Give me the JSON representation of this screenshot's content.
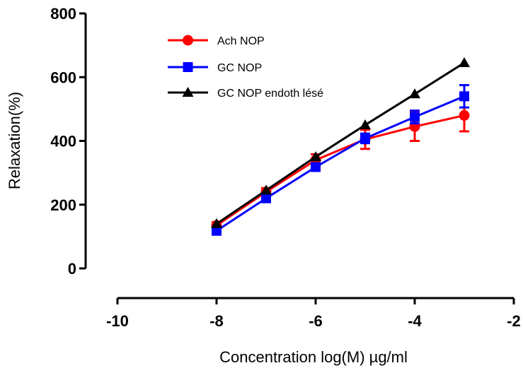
{
  "chart_data": {
    "type": "line",
    "title": "",
    "xlabel": "Concentration log(M) µg/ml",
    "ylabel": "Relaxation(%)",
    "xlim": [
      -10,
      -2
    ],
    "ylim": [
      0,
      800
    ],
    "xticks": [
      -10,
      -8,
      -6,
      -4,
      -2
    ],
    "yticks": [
      0,
      200,
      400,
      600,
      800
    ],
    "grid": false,
    "legend_position": "top-left",
    "series": [
      {
        "name": "Ach NOP",
        "color": "#ff0000",
        "marker": "circle",
        "x": [
          -8,
          -7,
          -6,
          -5,
          -4,
          -3
        ],
        "y": [
          135,
          240,
          340,
          405,
          445,
          480
        ],
        "err": [
          10,
          12,
          18,
          30,
          45,
          50
        ]
      },
      {
        "name": "GC NOP",
        "color": "#0000ff",
        "marker": "square",
        "x": [
          -8,
          -7,
          -6,
          -5,
          -4,
          -3
        ],
        "y": [
          118,
          220,
          318,
          408,
          475,
          540
        ],
        "err": [
          5,
          8,
          10,
          15,
          20,
          35
        ]
      },
      {
        "name": "GC NOP endoth lésé",
        "color": "#000000",
        "marker": "triangle",
        "x": [
          -8,
          -7,
          -6,
          -5,
          -4,
          -3
        ],
        "y": [
          140,
          245,
          350,
          450,
          547,
          645
        ],
        "err": [
          0,
          0,
          0,
          0,
          0,
          0
        ]
      }
    ]
  }
}
